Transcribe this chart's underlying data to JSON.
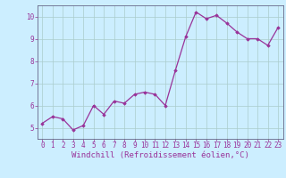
{
  "x": [
    0,
    1,
    2,
    3,
    4,
    5,
    6,
    7,
    8,
    9,
    10,
    11,
    12,
    13,
    14,
    15,
    16,
    17,
    18,
    19,
    20,
    21,
    22,
    23
  ],
  "y": [
    5.2,
    5.5,
    5.4,
    4.9,
    5.1,
    6.0,
    5.6,
    6.2,
    6.1,
    6.5,
    6.6,
    6.5,
    6.0,
    7.6,
    9.1,
    10.2,
    9.9,
    10.05,
    9.7,
    9.3,
    9.0,
    9.0,
    8.7,
    9.5
  ],
  "line_color": "#993399",
  "marker": "D",
  "marker_size": 1.8,
  "bg_color": "#cceeff",
  "grid_color": "#aacccc",
  "xlabel": "Windchill (Refroidissement éolien,°C)",
  "xlabel_color": "#993399",
  "xlabel_fontsize": 6.5,
  "tick_color": "#993399",
  "tick_fontsize": 5.5,
  "ylim": [
    4.5,
    10.5
  ],
  "xlim": [
    -0.5,
    23.5
  ],
  "yticks": [
    5,
    6,
    7,
    8,
    9,
    10
  ],
  "xticks": [
    0,
    1,
    2,
    3,
    4,
    5,
    6,
    7,
    8,
    9,
    10,
    11,
    12,
    13,
    14,
    15,
    16,
    17,
    18,
    19,
    20,
    21,
    22,
    23
  ],
  "linewidth": 0.9
}
